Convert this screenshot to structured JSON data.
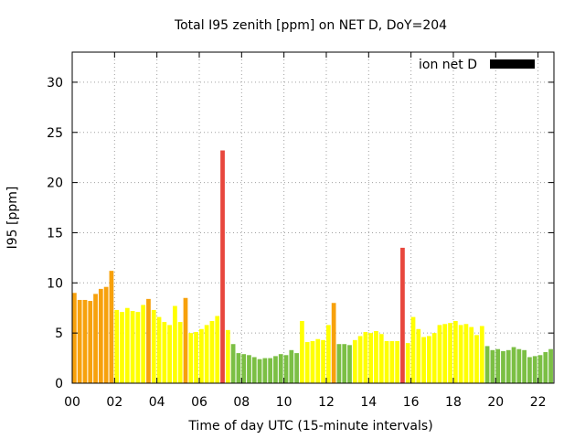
{
  "chart_data": {
    "type": "bar",
    "title": "Total I95 zenith [ppm] on NET D, DoY=204",
    "xlabel": "Time of day UTC (15-minute intervals)",
    "ylabel": "I95 [ppm]",
    "xlim": [
      0,
      22.75
    ],
    "ylim": [
      0,
      33
    ],
    "x_ticks": [
      "00",
      "02",
      "04",
      "06",
      "08",
      "10",
      "12",
      "14",
      "16",
      "18",
      "20",
      "22"
    ],
    "y_ticks": [
      "0",
      "5",
      "10",
      "15",
      "20",
      "25",
      "30"
    ],
    "grid": true,
    "legend_position": "top-right",
    "legend": [
      {
        "label": "ion net D",
        "color": "#000000"
      }
    ],
    "interval_hours": 0.25,
    "start_hour": 0,
    "values": [
      9.0,
      8.3,
      8.3,
      8.2,
      8.9,
      9.4,
      9.6,
      11.2,
      7.3,
      7.1,
      7.5,
      7.2,
      7.1,
      7.8,
      8.4,
      7.3,
      6.6,
      6.1,
      5.8,
      7.7,
      6.1,
      8.5,
      5.0,
      5.1,
      5.4,
      5.8,
      6.2,
      6.7,
      23.2,
      5.3,
      3.9,
      3.0,
      2.9,
      2.8,
      2.6,
      2.4,
      2.5,
      2.5,
      2.7,
      2.9,
      2.8,
      3.3,
      3.0,
      6.2,
      4.1,
      4.2,
      4.4,
      4.3,
      5.8,
      8.0,
      3.9,
      3.9,
      3.8,
      4.3,
      4.7,
      5.1,
      5.0,
      5.2,
      4.9,
      4.2,
      4.2,
      4.2,
      13.5,
      4.0,
      6.6,
      5.4,
      4.6,
      4.7,
      5.0,
      5.8,
      5.9,
      6.0,
      6.2,
      5.8,
      5.9,
      5.6,
      4.8,
      5.7,
      3.7,
      3.3,
      3.4,
      3.2,
      3.3,
      3.6,
      3.4,
      3.3,
      2.6,
      2.7,
      2.8,
      3.1,
      3.4,
      3.8
    ],
    "color_thresholds": [
      {
        "min": 0,
        "max": 4,
        "color": "#7bbf44"
      },
      {
        "min": 4,
        "max": 8,
        "color": "#ffff00"
      },
      {
        "min": 8,
        "max": 12,
        "color": "#f7a10c"
      },
      {
        "min": 12,
        "max": 1000,
        "color": "#e8473d"
      }
    ]
  }
}
